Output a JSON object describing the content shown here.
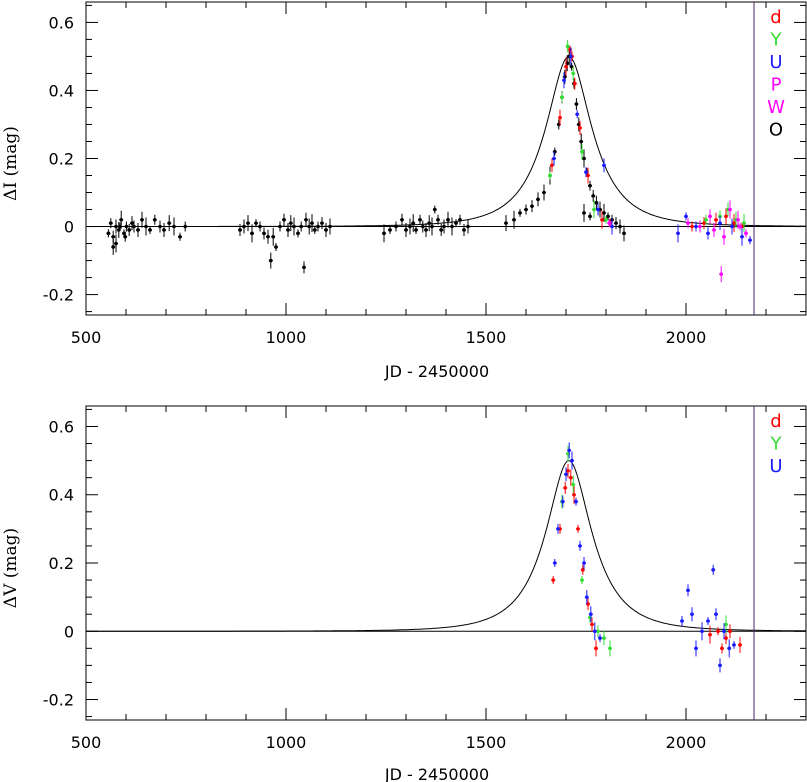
{
  "chart_data": [
    {
      "type": "scatter",
      "panel": "top",
      "xlabel": "JD - 2450000",
      "ylabel": "ΔI (mag)",
      "xlim": [
        500,
        2300
      ],
      "ylim": [
        -0.26,
        0.66
      ],
      "xticks": [
        {
          "value": 500,
          "label": "500"
        },
        {
          "value": 1000,
          "label": "1000"
        },
        {
          "value": 1500,
          "label": "1500"
        },
        {
          "value": 2000,
          "label": "2000"
        }
      ],
      "yticks": [
        {
          "value": 0.6,
          "label": "0.6"
        },
        {
          "value": 0.4,
          "label": "0.4"
        },
        {
          "value": 0.2,
          "label": "0.2"
        },
        {
          "value": 0,
          "label": "0"
        },
        {
          "value": -0.2,
          "label": "-0.2"
        }
      ],
      "vline_x": 2170,
      "model": {
        "t0": 1707,
        "u0": 0.5,
        "tE": 120,
        "baseline": 0
      },
      "legend": [
        {
          "label": "d",
          "color": "#ff0000"
        },
        {
          "label": "Y",
          "color": "#33dd33"
        },
        {
          "label": "U",
          "color": "#1a1aff"
        },
        {
          "label": "P",
          "color": "#ff00ff"
        },
        {
          "label": "W",
          "color": "#ff00ff"
        },
        {
          "label": "O",
          "color": "#000000"
        }
      ],
      "series": [
        {
          "name": "O",
          "color": "#000000",
          "points": [
            [
              556,
              -0.02
            ],
            [
              562,
              0.01
            ],
            [
              568,
              -0.03
            ],
            [
              575,
              0.0
            ],
            [
              582,
              -0.01
            ],
            [
              588,
              0.02
            ],
            [
              595,
              -0.02
            ],
            [
              601,
              0.0
            ],
            [
              608,
              -0.01
            ],
            [
              615,
              0.01
            ],
            [
              568,
              -0.06
            ],
            [
              575,
              -0.05
            ],
            [
              585,
              0.0
            ],
            [
              598,
              -0.03
            ],
            [
              620,
              0.0
            ],
            [
              630,
              -0.01
            ],
            [
              640,
              0.02
            ],
            [
              650,
              0.0
            ],
            [
              660,
              -0.01
            ],
            [
              672,
              0.02
            ],
            [
              685,
              0.0
            ],
            [
              695,
              -0.01
            ],
            [
              708,
              0.01
            ],
            [
              720,
              0.0
            ],
            [
              735,
              -0.03
            ],
            [
              748,
              0.0
            ],
            [
              885,
              -0.01
            ],
            [
              895,
              0.0
            ],
            [
              905,
              0.01
            ],
            [
              915,
              -0.02
            ],
            [
              925,
              0.01
            ],
            [
              935,
              0.0
            ],
            [
              945,
              -0.02
            ],
            [
              955,
              -0.03
            ],
            [
              962,
              -0.1
            ],
            [
              968,
              -0.03
            ],
            [
              975,
              -0.06
            ],
            [
              985,
              0.0
            ],
            [
              995,
              0.02
            ],
            [
              1005,
              -0.01
            ],
            [
              1012,
              0.01
            ],
            [
              1020,
              0.0
            ],
            [
              1030,
              -0.02
            ],
            [
              1038,
              0.0
            ],
            [
              1045,
              -0.12
            ],
            [
              1050,
              0.02
            ],
            [
              1058,
              0.0
            ],
            [
              1065,
              0.01
            ],
            [
              1072,
              -0.01
            ],
            [
              1080,
              0.0
            ],
            [
              1090,
              0.01
            ],
            [
              1100,
              -0.01
            ],
            [
              1110,
              0.0
            ],
            [
              1245,
              -0.02
            ],
            [
              1260,
              -0.01
            ],
            [
              1275,
              0.0
            ],
            [
              1290,
              0.02
            ],
            [
              1300,
              -0.01
            ],
            [
              1310,
              0.0
            ],
            [
              1318,
              0.01
            ],
            [
              1325,
              -0.01
            ],
            [
              1335,
              0.02
            ],
            [
              1342,
              0.0
            ],
            [
              1350,
              -0.01
            ],
            [
              1358,
              0.01
            ],
            [
              1365,
              0.0
            ],
            [
              1372,
              0.05
            ],
            [
              1380,
              0.02
            ],
            [
              1388,
              -0.01
            ],
            [
              1395,
              0.0
            ],
            [
              1405,
              0.02
            ],
            [
              1415,
              0.0
            ],
            [
              1425,
              0.01
            ],
            [
              1435,
              0.02
            ],
            [
              1445,
              -0.01
            ],
            [
              1455,
              0.0
            ],
            [
              1550,
              0.01
            ],
            [
              1570,
              0.02
            ],
            [
              1585,
              0.04
            ],
            [
              1600,
              0.05
            ],
            [
              1615,
              0.06
            ],
            [
              1630,
              0.08
            ],
            [
              1645,
              0.1
            ],
            [
              1660,
              0.15
            ],
            [
              1672,
              0.22
            ],
            [
              1682,
              0.3
            ],
            [
              1690,
              0.38
            ],
            [
              1697,
              0.44
            ],
            [
              1703,
              0.48
            ],
            [
              1708,
              0.5
            ],
            [
              1714,
              0.47
            ],
            [
              1720,
              0.42
            ],
            [
              1726,
              0.36
            ],
            [
              1732,
              0.3
            ],
            [
              1738,
              0.25
            ],
            [
              1745,
              0.2
            ],
            [
              1752,
              0.16
            ],
            [
              1760,
              0.12
            ],
            [
              1768,
              0.09
            ],
            [
              1776,
              0.07
            ],
            [
              1785,
              0.05
            ],
            [
              1795,
              0.04
            ],
            [
              1805,
              0.03
            ],
            [
              1815,
              0.02
            ],
            [
              1825,
              0.01
            ],
            [
              1835,
              0.0
            ],
            [
              1845,
              -0.02
            ],
            [
              1745,
              0.04
            ],
            [
              1760,
              0.03
            ]
          ]
        },
        {
          "name": "d",
          "color": "#ff0000",
          "points": [
            [
              1665,
              0.18
            ],
            [
              1685,
              0.32
            ],
            [
              1700,
              0.47
            ],
            [
              1710,
              0.52
            ],
            [
              1715,
              0.5
            ],
            [
              1722,
              0.42
            ],
            [
              1735,
              0.29
            ],
            [
              1755,
              0.15
            ],
            [
              1790,
              0.02
            ],
            [
              1810,
              0.01
            ],
            [
              2015,
              0.0
            ],
            [
              2045,
              0.01
            ],
            [
              2075,
              0.02
            ],
            [
              2100,
              0.03
            ],
            [
              2120,
              0.01
            ],
            [
              2140,
              0.0
            ]
          ]
        },
        {
          "name": "Y",
          "color": "#33dd33",
          "points": [
            [
              1660,
              0.15
            ],
            [
              1690,
              0.38
            ],
            [
              1704,
              0.53
            ],
            [
              1718,
              0.45
            ],
            [
              1740,
              0.22
            ],
            [
              1770,
              0.05
            ],
            [
              1800,
              0.02
            ],
            [
              2050,
              0.02
            ],
            [
              2085,
              0.03
            ],
            [
              2105,
              0.05
            ],
            [
              2125,
              0.02
            ],
            [
              2145,
              0.01
            ]
          ]
        },
        {
          "name": "U",
          "color": "#1a1aff",
          "points": [
            [
              1670,
              0.2
            ],
            [
              1695,
              0.43
            ],
            [
              1712,
              0.5
            ],
            [
              1728,
              0.33
            ],
            [
              1750,
              0.16
            ],
            [
              1780,
              0.05
            ],
            [
              1795,
              0.18
            ],
            [
              1815,
              0.0
            ],
            [
              1980,
              -0.02
            ],
            [
              2000,
              0.03
            ],
            [
              2025,
              0.0
            ],
            [
              2055,
              -0.02
            ],
            [
              2085,
              0.01
            ],
            [
              2115,
              0.0
            ],
            [
              2140,
              -0.03
            ],
            [
              2160,
              -0.04
            ]
          ]
        },
        {
          "name": "P",
          "color": "#ff00ff",
          "points": [
            [
              1808,
              0.01
            ],
            [
              2005,
              0.01
            ],
            [
              2035,
              0.0
            ],
            [
              2070,
              -0.01
            ],
            [
              2095,
              -0.03
            ],
            [
              2130,
              0.02
            ],
            [
              2150,
              -0.02
            ]
          ]
        },
        {
          "name": "W",
          "color": "#ff00ff",
          "points": [
            [
              2060,
              0.03
            ],
            [
              2088,
              -0.14
            ],
            [
              2110,
              0.05
            ],
            [
              2135,
              0.0
            ]
          ]
        }
      ]
    },
    {
      "type": "scatter",
      "panel": "bottom",
      "xlabel": "JD - 2450000",
      "ylabel": "ΔV (mag)",
      "xlim": [
        500,
        2300
      ],
      "ylim": [
        -0.26,
        0.66
      ],
      "xticks": [
        {
          "value": 500,
          "label": "500"
        },
        {
          "value": 1000,
          "label": "1000"
        },
        {
          "value": 1500,
          "label": "1500"
        },
        {
          "value": 2000,
          "label": "2000"
        }
      ],
      "yticks": [
        {
          "value": 0.6,
          "label": "0.6"
        },
        {
          "value": 0.4,
          "label": "0.4"
        },
        {
          "value": 0.2,
          "label": "0.2"
        },
        {
          "value": 0,
          "label": "0"
        },
        {
          "value": -0.2,
          "label": "-0.2"
        }
      ],
      "vline_x": 2170,
      "model": {
        "t0": 1707,
        "u0": 0.5,
        "tE": 120,
        "baseline": 0
      },
      "legend": [
        {
          "label": "d",
          "color": "#ff0000"
        },
        {
          "label": "Y",
          "color": "#33dd33"
        },
        {
          "label": "U",
          "color": "#1a1aff"
        }
      ],
      "series": [
        {
          "name": "d",
          "color": "#ff0000",
          "points": [
            [
              1668,
              0.15
            ],
            [
              1685,
              0.3
            ],
            [
              1698,
              0.42
            ],
            [
              1705,
              0.47
            ],
            [
              1712,
              0.45
            ],
            [
              1720,
              0.4
            ],
            [
              1730,
              0.3
            ],
            [
              1742,
              0.18
            ],
            [
              1755,
              0.08
            ],
            [
              1765,
              0.02
            ],
            [
              1775,
              -0.05
            ],
            [
              2060,
              -0.01
            ],
            [
              2080,
              0.0
            ],
            [
              2090,
              -0.05
            ],
            [
              2100,
              -0.02
            ],
            [
              2110,
              0.0
            ],
            [
              2135,
              -0.04
            ]
          ]
        },
        {
          "name": "Y",
          "color": "#33dd33",
          "points": [
            [
              1690,
              0.38
            ],
            [
              1705,
              0.52
            ],
            [
              1718,
              0.43
            ],
            [
              1740,
              0.15
            ],
            [
              1760,
              0.04
            ],
            [
              1780,
              0.0
            ],
            [
              1795,
              -0.02
            ],
            [
              1810,
              -0.05
            ],
            [
              2100,
              0.02
            ]
          ]
        },
        {
          "name": "U",
          "color": "#1a1aff",
          "points": [
            [
              1672,
              0.2
            ],
            [
              1680,
              0.3
            ],
            [
              1692,
              0.38
            ],
            [
              1700,
              0.46
            ],
            [
              1708,
              0.53
            ],
            [
              1715,
              0.5
            ],
            [
              1725,
              0.38
            ],
            [
              1735,
              0.25
            ],
            [
              1745,
              0.2
            ],
            [
              1752,
              0.1
            ],
            [
              1762,
              0.05
            ],
            [
              1772,
              0.0
            ],
            [
              1785,
              -0.02
            ],
            [
              1990,
              0.03
            ],
            [
              2005,
              0.12
            ],
            [
              2015,
              0.05
            ],
            [
              2025,
              -0.05
            ],
            [
              2040,
              0.0
            ],
            [
              2055,
              0.03
            ],
            [
              2068,
              0.18
            ],
            [
              2075,
              0.05
            ],
            [
              2085,
              -0.1
            ],
            [
              2095,
              0.0
            ],
            [
              2108,
              -0.05
            ],
            [
              2120,
              -0.04
            ]
          ]
        }
      ]
    }
  ]
}
